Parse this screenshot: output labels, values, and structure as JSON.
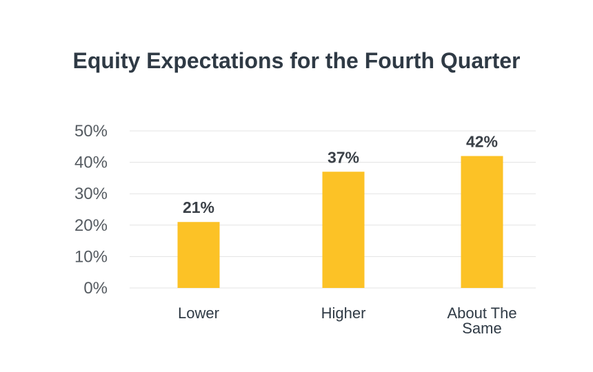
{
  "chart_data": {
    "type": "bar",
    "title": "Equity Expectations for the Fourth Quarter",
    "categories": [
      [
        "Lower"
      ],
      [
        "Higher"
      ],
      [
        "About The",
        "Same"
      ]
    ],
    "values": [
      21,
      37,
      42
    ],
    "data_labels": [
      "21%",
      "37%",
      "42%"
    ],
    "y_ticks": [
      0,
      10,
      20,
      30,
      40,
      50
    ],
    "y_tick_labels": [
      "0%",
      "10%",
      "20%",
      "30%",
      "40%",
      "50%"
    ],
    "ylim": [
      0,
      50
    ],
    "grid": true,
    "legend": "none",
    "colors": {
      "bar": "#fcc226",
      "grid": "#e3e3e3",
      "title": "#2f3a45"
    }
  }
}
